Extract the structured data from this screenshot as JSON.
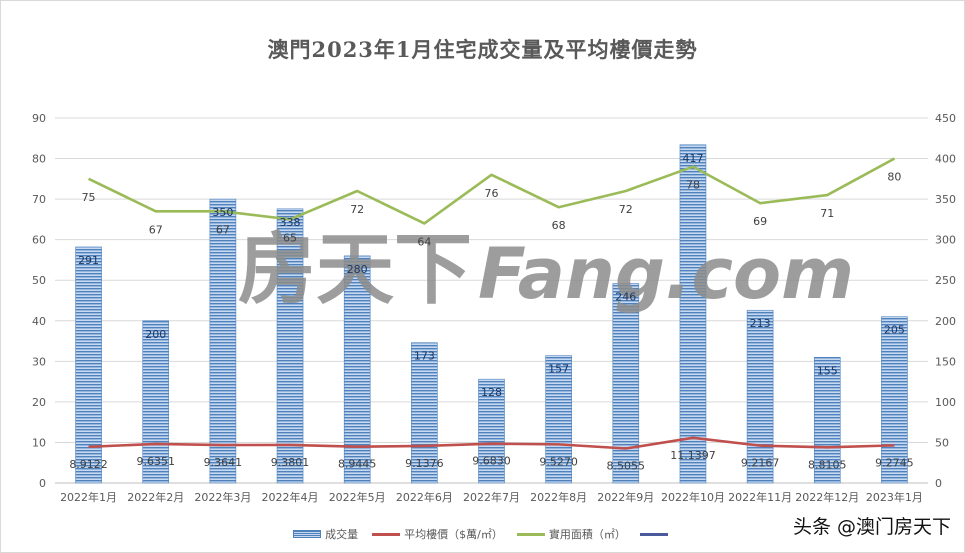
{
  "title": "澳門2023年1月住宅成交量及平均樓價走勢",
  "credit": "头条 @澳门房天下",
  "watermark": "房天下Fang.com",
  "colors": {
    "bar": "#4f81bd",
    "bar_light": "#c6d9f1",
    "price_line": "#c0504d",
    "area_line": "#9bbb59",
    "fourth_line": "#4a5a9a",
    "grid": "#d9d9d9",
    "axis_text": "#595959",
    "watermark": "#8c8c8c"
  },
  "legend": [
    {
      "key": "volume",
      "label": "成交量",
      "kind": "bar"
    },
    {
      "key": "price",
      "label": "平均樓價（$萬/㎡）",
      "kind": "line"
    },
    {
      "key": "area",
      "label": "實用面積（㎡）",
      "kind": "line"
    },
    {
      "key": "blank",
      "label": "",
      "kind": "line"
    }
  ],
  "chart_data": {
    "type": "bar",
    "title": "澳門2023年1月住宅成交量及平均樓價走勢",
    "xlabel": "",
    "ylabel": "",
    "categories": [
      "2022年1月",
      "2022年2月",
      "2022年3月",
      "2022年4月",
      "2022年5月",
      "2022年6月",
      "2022年7月",
      "2022年8月",
      "2022年9月",
      "2022年10月",
      "2022年11月",
      "2022年12月",
      "2023年1月"
    ],
    "series": [
      {
        "name": "成交量",
        "type": "bar",
        "axis": "right",
        "values": [
          291,
          200,
          350,
          338,
          280,
          173,
          128,
          157,
          246,
          417,
          213,
          155,
          205
        ]
      },
      {
        "name": "平均樓價（$萬/㎡）",
        "type": "line",
        "axis": "left",
        "values": [
          8.9122,
          9.6351,
          9.3641,
          9.3801,
          8.9445,
          9.1376,
          9.683,
          9.527,
          8.5055,
          11.1397,
          9.2167,
          8.8105,
          9.2745
        ]
      },
      {
        "name": "實用面積（㎡）",
        "type": "line",
        "axis": "left",
        "values": [
          75,
          67,
          67,
          65,
          72,
          64,
          76,
          68,
          72,
          78,
          69,
          71,
          80
        ]
      },
      {
        "name": "",
        "type": "line",
        "axis": "left",
        "values": []
      }
    ],
    "ylim_left": [
      0,
      90
    ],
    "yticks_left": [
      0,
      10,
      20,
      30,
      40,
      50,
      60,
      70,
      80,
      90
    ],
    "ylim_right": [
      0,
      450
    ],
    "yticks_right": [
      0,
      50,
      100,
      150,
      200,
      250,
      300,
      350,
      400,
      450
    ],
    "grid": true,
    "legend_position": "bottom"
  }
}
